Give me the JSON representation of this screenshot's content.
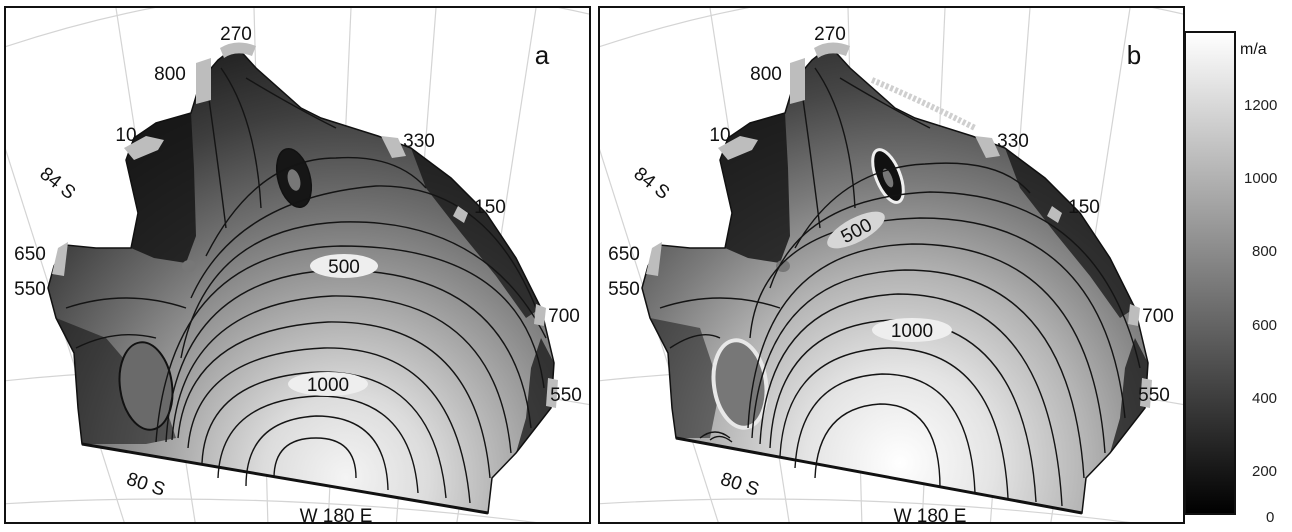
{
  "panels": [
    {
      "id": "a",
      "letter": "a",
      "inflow_labels": [
        "270",
        "800",
        "10",
        "330",
        "150",
        "650",
        "550",
        "700",
        "550"
      ],
      "contour_labels": [
        "500",
        "1000"
      ],
      "lat_labels": [
        "84 S",
        "80 S"
      ],
      "lon_label": "W 180 E"
    },
    {
      "id": "b",
      "letter": "b",
      "inflow_labels": [
        "270",
        "800",
        "10",
        "330",
        "150",
        "650",
        "550",
        "700",
        "550"
      ],
      "contour_labels": [
        "500",
        "1000"
      ],
      "lat_labels": [
        "84 S",
        "80 S"
      ],
      "lon_label": "W 180 E"
    }
  ],
  "colorbar": {
    "unit": "m/a",
    "ticks": [
      "1200",
      "1000",
      "800",
      "600",
      "400",
      "200",
      "0"
    ],
    "range": [
      0,
      1300
    ],
    "colors": {
      "low": "#000000",
      "high": "#ffffff"
    }
  },
  "colors": {
    "coast_inflow": "#bdbdbd",
    "contour": "#141414",
    "grid": "#d4d4d4"
  }
}
